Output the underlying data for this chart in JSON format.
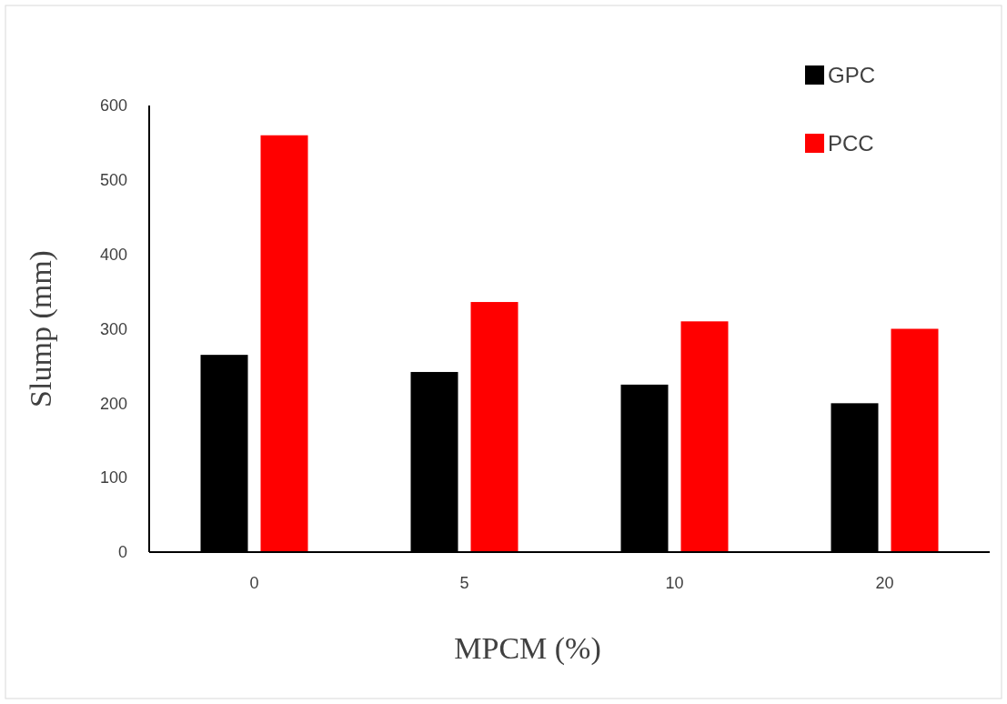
{
  "chart_data": {
    "type": "bar",
    "xlabel": "MPCM (%)",
    "ylabel": "Slump (mm)",
    "categories": [
      "0",
      "5",
      "10",
      "20"
    ],
    "series": [
      {
        "name": "GPC",
        "color": "#000000",
        "values": [
          265,
          242,
          225,
          200
        ]
      },
      {
        "name": "PCC",
        "color": "#ff0000",
        "values": [
          560,
          336,
          310,
          300
        ]
      }
    ],
    "ylim": [
      0,
      600
    ],
    "yticks": [
      0,
      100,
      200,
      300,
      400,
      500,
      600
    ],
    "grid": false,
    "legend": "top right"
  }
}
